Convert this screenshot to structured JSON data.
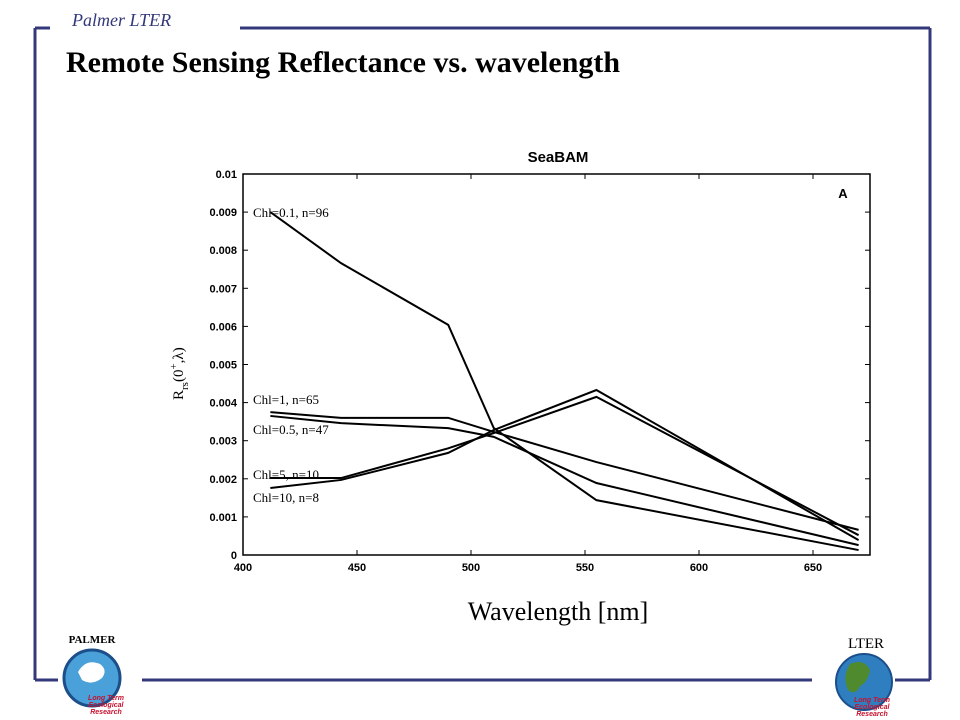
{
  "header": {
    "org": "Palmer LTER",
    "title": "Remote Sensing Reflectance vs. wavelength"
  },
  "chart_data": {
    "type": "line",
    "title": "SeaBAM",
    "panel": "A",
    "ylabel": {
      "base": "R",
      "sub": "rs",
      "open": "(0",
      "sup": "+",
      "close": ",λ)"
    },
    "xlabel": "Wavelength [nm]",
    "x": [
      412,
      443,
      490,
      510,
      555,
      670
    ],
    "xlim": [
      400,
      675
    ],
    "xticks": [
      400,
      450,
      500,
      550,
      600,
      650
    ],
    "ylim": [
      0,
      0.01
    ],
    "yticks": [
      0,
      0.001,
      0.002,
      0.003,
      0.004,
      0.005,
      0.006,
      0.007,
      0.008,
      0.009,
      0.01
    ],
    "color": "#000000",
    "series": [
      {
        "name": "Chl=0.1, n=96",
        "values": [
          0.009,
          0.00766,
          0.00604,
          0.00333,
          0.00144,
          0.00013
        ]
      },
      {
        "name": "Chl=1, n=65",
        "values": [
          0.00375,
          0.0036,
          0.0036,
          0.00323,
          0.00244,
          0.00066
        ]
      },
      {
        "name": "Chl=0.5, n=47",
        "values": [
          0.00365,
          0.00346,
          0.00333,
          0.0031,
          0.00189,
          0.00026
        ]
      },
      {
        "name": "Chl=5, n=10",
        "values": [
          0.00202,
          0.00202,
          0.0028,
          0.0032,
          0.00415,
          0.00052
        ]
      },
      {
        "name": "Chl=10, n=8",
        "values": [
          0.00176,
          0.00197,
          0.00268,
          0.00328,
          0.00433,
          0.00039
        ]
      }
    ]
  },
  "logos": {
    "left": {
      "name": "PALMER",
      "caption": [
        "Long Term",
        "Ecological",
        "Research"
      ]
    },
    "right": {
      "name": "LTER",
      "caption": [
        "Long Term",
        "Ecological",
        "Research"
      ]
    }
  }
}
